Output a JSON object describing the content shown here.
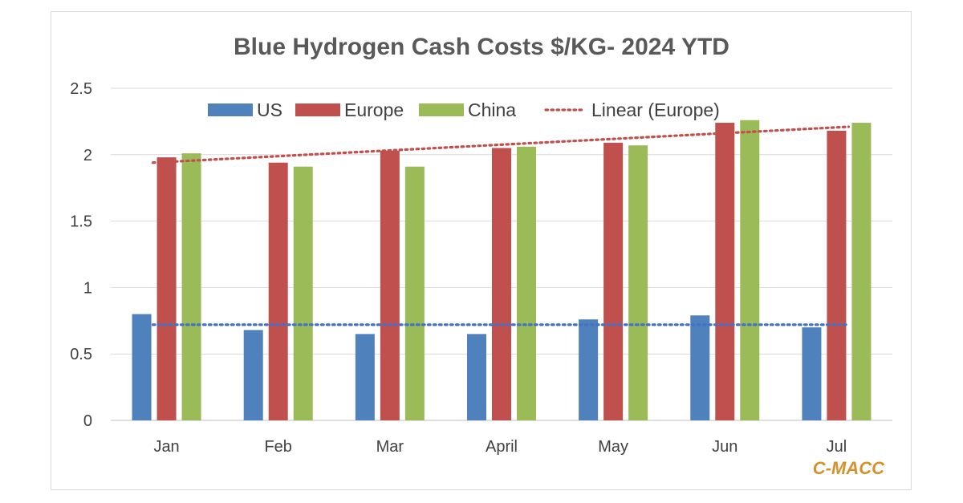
{
  "chart_data": {
    "type": "bar",
    "title": "Blue Hydrogen Cash Costs $/KG- 2024 YTD",
    "xlabel": "",
    "ylabel": "",
    "ylim": [
      0,
      2.5
    ],
    "yticks": [
      "0",
      "0.5",
      "1",
      "1.5",
      "2",
      "2.5"
    ],
    "ytick_values": [
      0,
      0.5,
      1,
      1.5,
      2,
      2.5
    ],
    "grid": true,
    "legend_position": "top",
    "categories": [
      "Jan",
      "Feb",
      "Mar",
      "April",
      "May",
      "Jun",
      "Jul"
    ],
    "series": [
      {
        "name": "US",
        "color": "#4f81bd",
        "values": [
          0.8,
          0.68,
          0.65,
          0.65,
          0.76,
          0.79,
          0.7
        ]
      },
      {
        "name": "Europe",
        "color": "#c0504d",
        "values": [
          1.98,
          1.94,
          2.03,
          2.05,
          2.09,
          2.24,
          2.18
        ]
      },
      {
        "name": "China",
        "color": "#9bbb59",
        "values": [
          2.01,
          1.91,
          1.91,
          2.06,
          2.07,
          2.26,
          2.24
        ]
      }
    ],
    "trendlines": [
      {
        "name": "Linear (Europe)",
        "series": "Europe",
        "color": "#c0504d",
        "start": 1.94,
        "end": 2.21,
        "in_legend": true
      },
      {
        "name": "Linear (US)",
        "series": "US",
        "color": "#4472c4",
        "start": 0.72,
        "end": 0.72,
        "in_legend": false
      }
    ],
    "annotation": "C-MACC"
  }
}
